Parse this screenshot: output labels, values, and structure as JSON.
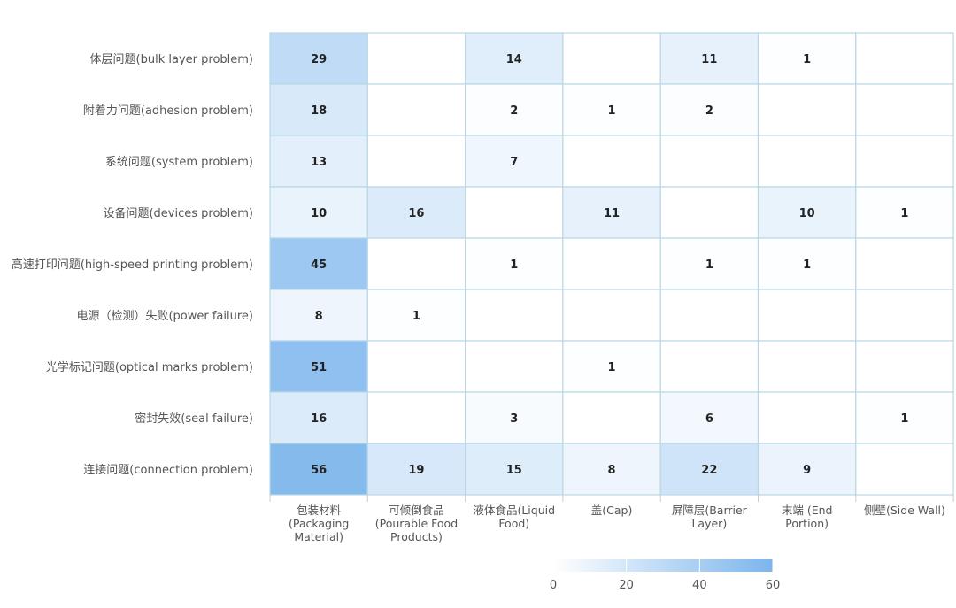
{
  "chart_data": {
    "type": "heatmap",
    "rows": [
      "体层问题(bulk layer problem)",
      "附着力问题(adhesion problem)",
      "系统问题(system problem)",
      "设备问题(devices problem)",
      "高速打印问题(high-speed printing problem)",
      "电源（检测）失败(power failure)",
      "光学标记问题(optical marks problem)",
      "密封失效(seal failure)",
      "连接问题(connection problem)"
    ],
    "columns": [
      [
        "包装材料",
        "(Packaging",
        "Material)"
      ],
      [
        "可倾倒食品",
        "(Pourable Food",
        "Products)"
      ],
      [
        "液体食品(Liquid",
        "Food)"
      ],
      [
        "盖(Cap)"
      ],
      [
        "屏障层(Barrier",
        "Layer)"
      ],
      [
        "末端 (End",
        "Portion)"
      ],
      [
        "侧壁(Side Wall)"
      ]
    ],
    "values": [
      [
        29,
        null,
        14,
        null,
        11,
        1,
        null
      ],
      [
        18,
        null,
        2,
        1,
        2,
        null,
        null
      ],
      [
        13,
        null,
        7,
        null,
        null,
        null,
        null
      ],
      [
        10,
        16,
        null,
        11,
        null,
        10,
        1
      ],
      [
        45,
        null,
        1,
        null,
        1,
        1,
        null
      ],
      [
        8,
        1,
        null,
        null,
        null,
        null,
        null
      ],
      [
        51,
        null,
        null,
        1,
        null,
        null,
        null
      ],
      [
        16,
        null,
        3,
        null,
        6,
        null,
        1
      ],
      [
        56,
        19,
        15,
        8,
        22,
        9,
        null
      ]
    ],
    "color_scale": {
      "min": 0,
      "max": 60,
      "min_color": "#ffffff",
      "max_color": "#7cb5ec",
      "ticks": [
        0,
        20,
        40,
        60
      ]
    },
    "grid": true,
    "legend_position": "bottom"
  }
}
